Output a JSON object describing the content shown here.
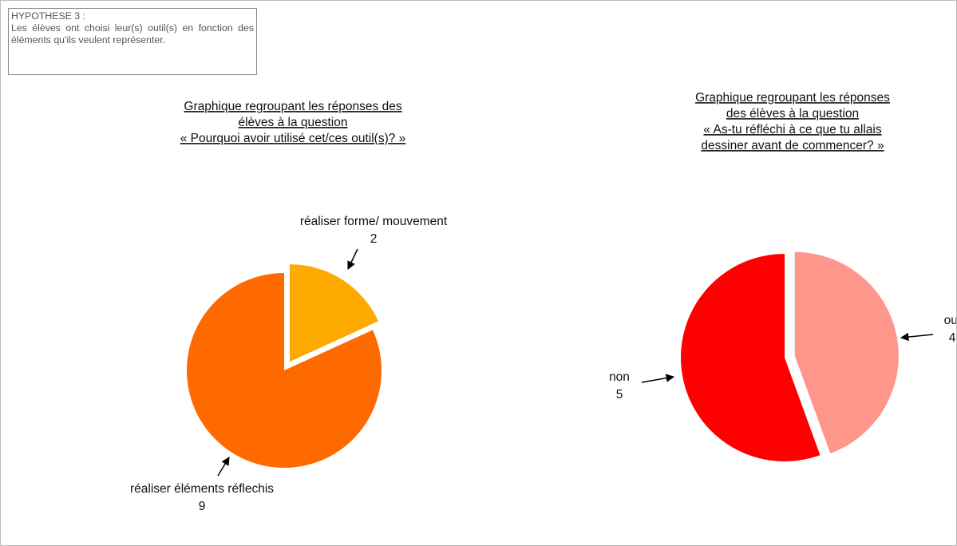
{
  "note": {
    "heading": "HYPOTHESE 3 :",
    "text": "Les élèves ont choisi leur(s) outil(s) en fonction des éléments qu'ils veulent représenter."
  },
  "chart_data": [
    {
      "type": "pie",
      "title": [
        "Graphique regroupant les réponses des",
        "élèves à la question",
        "« Pourquoi avoir utilisé cet/ces outil(s)? »"
      ],
      "categories": [
        "réaliser forme/ mouvement",
        "réaliser éléments réflechis"
      ],
      "values": [
        2,
        9
      ],
      "colors": [
        "#ffaa00",
        "#ff6a00"
      ]
    },
    {
      "type": "pie",
      "title": [
        "Graphique regroupant les réponses",
        "des élèves à la question",
        "« As-tu réfléchi à ce que tu allais",
        "dessiner avant de commencer? »"
      ],
      "categories": [
        "oui",
        "non"
      ],
      "values": [
        4,
        5
      ],
      "colors": [
        "#ff968c",
        "#ff0000"
      ]
    }
  ]
}
